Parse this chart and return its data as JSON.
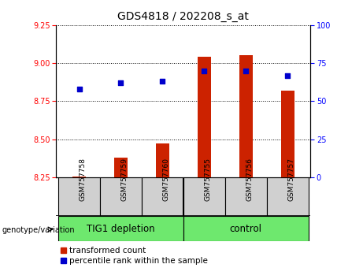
{
  "title": "GDS4818 / 202208_s_at",
  "samples": [
    "GSM757758",
    "GSM757759",
    "GSM757760",
    "GSM757755",
    "GSM757756",
    "GSM757757"
  ],
  "group_labels": [
    "TIG1 depletion",
    "control"
  ],
  "transformed_counts": [
    8.252,
    8.38,
    8.47,
    9.04,
    9.05,
    8.82
  ],
  "percentile_ranks_yval": [
    8.83,
    8.87,
    8.88,
    8.95,
    8.95,
    8.92
  ],
  "ylim_left": [
    8.25,
    9.25
  ],
  "ylim_right": [
    0,
    100
  ],
  "yticks_left": [
    8.25,
    8.5,
    8.75,
    9.0,
    9.25
  ],
  "yticks_right": [
    0,
    25,
    50,
    75,
    100
  ],
  "bar_color": "#CC2200",
  "dot_color": "#0000CC",
  "bar_bottom": 8.25,
  "title_fontsize": 10,
  "tick_fontsize": 7,
  "legend_fontsize": 7.5,
  "group_label_fontsize": 8.5,
  "sample_fontsize": 6.5,
  "gray_bg": "#D0D0D0",
  "green_bg": "#6EE86E"
}
